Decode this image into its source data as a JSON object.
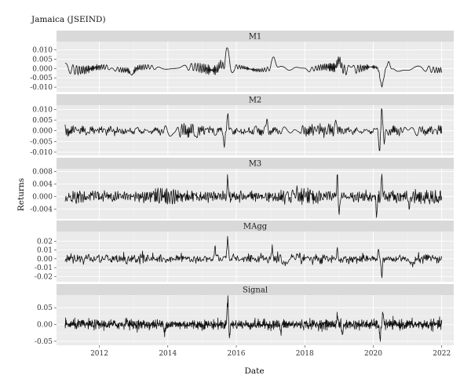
{
  "chart_data": {
    "type": "line",
    "title": "Jamaica (JSEIND)",
    "xlabel": "Date",
    "ylabel": "Returns",
    "xlim": [
      2010.75,
      2022.35
    ],
    "x_ticks": [
      2012,
      2014,
      2016,
      2018,
      2020,
      2022
    ],
    "x_tick_labels": [
      "2012",
      "2014",
      "2016",
      "2018",
      "2020",
      "2022"
    ],
    "grid": true,
    "x_start": 2011.0,
    "x_end": 2022.0,
    "panels": [
      {
        "name": "M1",
        "ylim": [
          -0.0125,
          0.0145
        ],
        "y_ticks": [
          -0.01,
          -0.005,
          0.0,
          0.005,
          0.01
        ],
        "y_tick_labels": [
          "-0.010",
          "-0.005",
          "0.000",
          "0.005",
          "0.010"
        ],
        "amplitude": 0.0022,
        "freq": 0.45,
        "noise": 0.0,
        "spikes": [
          {
            "x": 2015.75,
            "y": 0.0125
          },
          {
            "x": 2015.55,
            "y": 0.003
          },
          {
            "x": 2015.85,
            "y": -0.003
          },
          {
            "x": 2017.1,
            "y": 0.0065
          },
          {
            "x": 2019.0,
            "y": 0.005
          },
          {
            "x": 2020.25,
            "y": -0.0095
          },
          {
            "x": 2012.95,
            "y": -0.003
          },
          {
            "x": 2020.45,
            "y": 0.004
          }
        ]
      },
      {
        "name": "M2",
        "ylim": [
          -0.0115,
          0.012
        ],
        "y_ticks": [
          -0.01,
          -0.005,
          0.0,
          0.005,
          0.01
        ],
        "y_tick_labels": [
          "-0.010",
          "-0.005",
          "0.000",
          "0.005",
          "0.010"
        ],
        "amplitude": 0.0022,
        "freq": 2.2,
        "noise": 0.0,
        "spikes": [
          {
            "x": 2015.75,
            "y": 0.008
          },
          {
            "x": 2015.65,
            "y": -0.006
          },
          {
            "x": 2016.9,
            "y": 0.004
          },
          {
            "x": 2018.9,
            "y": 0.004
          },
          {
            "x": 2020.25,
            "y": 0.0115
          },
          {
            "x": 2020.18,
            "y": -0.0095
          },
          {
            "x": 2020.32,
            "y": -0.006
          }
        ]
      },
      {
        "name": "M3",
        "ylim": [
          -0.0072,
          0.0089
        ],
        "y_ticks": [
          -0.004,
          0.0,
          0.004,
          0.008
        ],
        "y_tick_labels": [
          "-0.004",
          "0.000",
          "0.004",
          "0.008"
        ],
        "amplitude": 0.0016,
        "freq": 9.0,
        "noise": 0.0004,
        "spikes": [
          {
            "x": 2015.75,
            "y": 0.0058
          },
          {
            "x": 2018.95,
            "y": 0.0072
          },
          {
            "x": 2019.0,
            "y": -0.0065
          },
          {
            "x": 2020.25,
            "y": 0.0065
          },
          {
            "x": 2020.1,
            "y": -0.005
          },
          {
            "x": 2021.05,
            "y": -0.005
          },
          {
            "x": 2012.4,
            "y": -0.002
          }
        ]
      },
      {
        "name": "MAgg",
        "ylim": [
          -0.026,
          0.031
        ],
        "y_ticks": [
          -0.02,
          -0.01,
          0.0,
          0.01,
          0.02
        ],
        "y_tick_labels": [
          "-0.02",
          "-0.01",
          "0.00",
          "0.01",
          "0.02"
        ],
        "amplitude": 0.003,
        "freq": 2.2,
        "noise": 0.002,
        "spikes": [
          {
            "x": 2015.75,
            "y": 0.025
          },
          {
            "x": 2015.38,
            "y": 0.012
          },
          {
            "x": 2017.05,
            "y": 0.013
          },
          {
            "x": 2018.95,
            "y": 0.014
          },
          {
            "x": 2020.25,
            "y": -0.022
          },
          {
            "x": 2020.15,
            "y": 0.012
          },
          {
            "x": 2012.8,
            "y": -0.01
          }
        ]
      },
      {
        "name": "Signal",
        "ylim": [
          -0.062,
          0.088
        ],
        "y_ticks": [
          -0.05,
          0.0,
          0.05
        ],
        "y_tick_labels": [
          "-0.05",
          "0.00",
          "0.05"
        ],
        "amplitude": 0.0,
        "freq": 1.0,
        "noise": 0.007,
        "spikes": [
          {
            "x": 2015.75,
            "y": 0.08
          },
          {
            "x": 2015.8,
            "y": -0.03
          },
          {
            "x": 2020.2,
            "y": -0.052
          },
          {
            "x": 2020.28,
            "y": 0.04
          },
          {
            "x": 2018.95,
            "y": 0.03
          },
          {
            "x": 2019.1,
            "y": -0.035
          },
          {
            "x": 2017.3,
            "y": -0.025
          },
          {
            "x": 2012.8,
            "y": 0.02
          },
          {
            "x": 2013.9,
            "y": -0.02
          }
        ]
      }
    ]
  }
}
